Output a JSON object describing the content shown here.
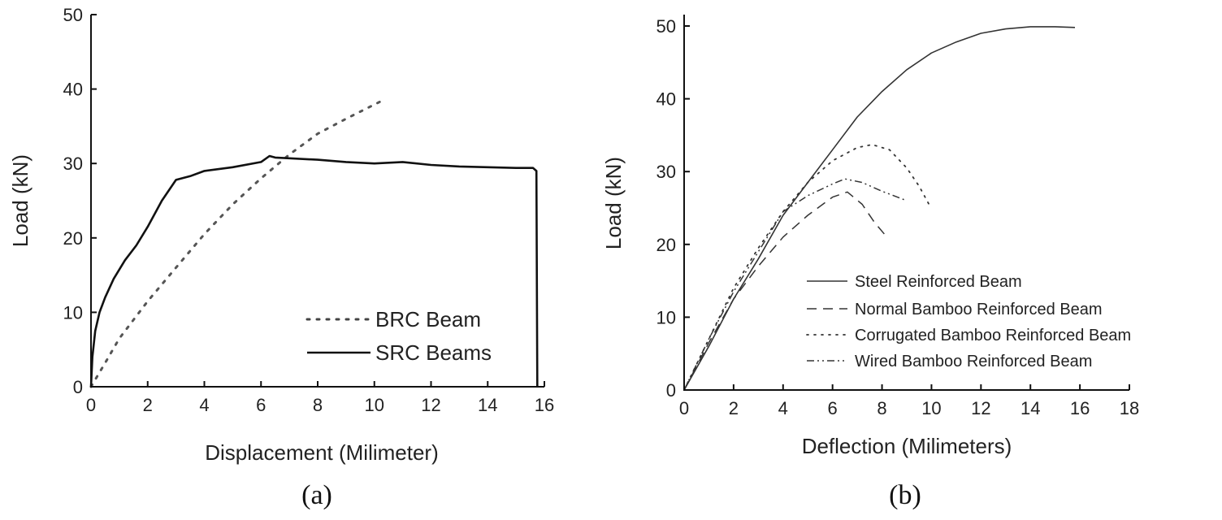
{
  "chart_data": [
    {
      "type": "line",
      "panel_label": "(a)",
      "xlabel": "Displacement (Milimeter)",
      "ylabel": "Load (kN)",
      "xlim": [
        0,
        16
      ],
      "ylim": [
        0,
        50
      ],
      "xticks": [
        0,
        2,
        4,
        6,
        8,
        10,
        12,
        14,
        16
      ],
      "yticks": [
        0,
        10,
        20,
        30,
        40,
        50
      ],
      "legend_position": "bottom-right",
      "series": [
        {
          "name": "BRC Beam",
          "style": "dotted",
          "x": [
            0,
            0.5,
            1,
            2,
            3,
            4,
            5,
            6,
            7,
            8,
            9,
            10.2
          ],
          "y": [
            0,
            3.2,
            6.5,
            11.5,
            16,
            20.5,
            24.5,
            28,
            31.2,
            34,
            36,
            38.3
          ]
        },
        {
          "name": "SRC Beams",
          "style": "solid",
          "x": [
            0,
            0.05,
            0.15,
            0.3,
            0.5,
            0.8,
            1.2,
            1.6,
            2,
            2.5,
            3,
            3.5,
            4,
            5,
            6,
            6.3,
            6.5,
            7,
            8,
            9,
            10,
            11,
            12,
            13,
            14,
            15,
            15.6,
            15.72,
            15.75
          ],
          "y": [
            0,
            4,
            7.5,
            10,
            12,
            14.5,
            17,
            19,
            21.5,
            25,
            27.8,
            28.3,
            29,
            29.5,
            30.2,
            31,
            30.8,
            30.7,
            30.5,
            30.2,
            30,
            30.2,
            29.8,
            29.6,
            29.5,
            29.4,
            29.4,
            29,
            0
          ]
        }
      ]
    },
    {
      "type": "line",
      "panel_label": "(b)",
      "xlabel": "Deflection (Milimeters)",
      "ylabel": "Load (kN)",
      "xlim": [
        0,
        18
      ],
      "ylim": [
        0,
        50
      ],
      "xticks": [
        0,
        2,
        4,
        6,
        8,
        10,
        12,
        14,
        16,
        18
      ],
      "yticks": [
        0,
        10,
        20,
        30,
        40,
        50
      ],
      "legend_position": "bottom-right",
      "series": [
        {
          "name": "Steel Reinforced Beam",
          "style": "solid",
          "x": [
            0,
            1,
            2,
            3,
            4,
            5,
            6,
            7,
            8,
            9,
            10,
            11,
            12,
            13,
            14,
            15,
            15.8
          ],
          "y": [
            0,
            6,
            12.5,
            18,
            24,
            28.5,
            33,
            37.5,
            41,
            44,
            46.3,
            47.8,
            49,
            49.6,
            49.9,
            49.9,
            49.8
          ]
        },
        {
          "name": "Normal Bamboo Reinforced Beam",
          "style": "dashed",
          "x": [
            0,
            1,
            2,
            3,
            4,
            5,
            6,
            6.6,
            7.2,
            7.7,
            8.2
          ],
          "y": [
            0,
            6.5,
            12.5,
            17,
            21,
            24,
            26.5,
            27.2,
            25.5,
            23,
            21
          ]
        },
        {
          "name": "Corrugated Bamboo Reinforced Beam",
          "style": "dotted",
          "x": [
            0,
            1,
            2,
            3,
            4,
            5,
            6,
            7,
            7.6,
            8.3,
            9,
            9.5,
            9.9
          ],
          "y": [
            0,
            7,
            14,
            19.5,
            24.5,
            28.5,
            31.5,
            33.3,
            33.7,
            33,
            30.5,
            28,
            25.5
          ]
        },
        {
          "name": "Wired Bamboo Reinforced Beam",
          "style": "dashdot",
          "x": [
            0,
            1,
            2,
            3,
            4,
            5,
            6,
            6.5,
            7.2,
            8,
            9
          ],
          "y": [
            0,
            7,
            13.5,
            19,
            24.5,
            26.7,
            28.3,
            29,
            28.5,
            27.3,
            26
          ]
        }
      ]
    }
  ]
}
